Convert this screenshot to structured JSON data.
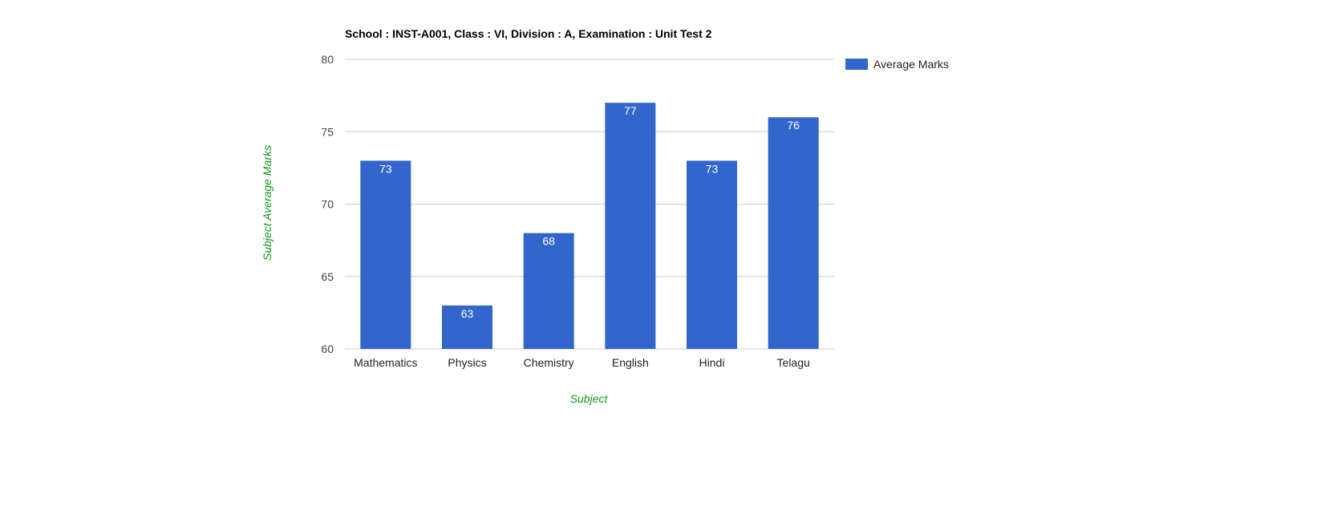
{
  "chart_data": {
    "type": "bar",
    "title": "School : INST-A001, Class : VI, Division : A, Examination : Unit Test 2",
    "xlabel": "Subject",
    "ylabel": "Subject Average Marks",
    "categories": [
      "Mathematics",
      "Physics",
      "Chemistry",
      "English",
      "Hindi",
      "Telagu"
    ],
    "series": [
      {
        "name": "Average Marks",
        "values": [
          73,
          63,
          68,
          77,
          73,
          76
        ],
        "color": "#3366cc"
      }
    ],
    "ylim": [
      60,
      80
    ],
    "yticks": [
      60,
      65,
      70,
      75,
      80
    ],
    "grid": true,
    "legend": "right",
    "axis_title_color": "#109618",
    "data_labels": true
  }
}
